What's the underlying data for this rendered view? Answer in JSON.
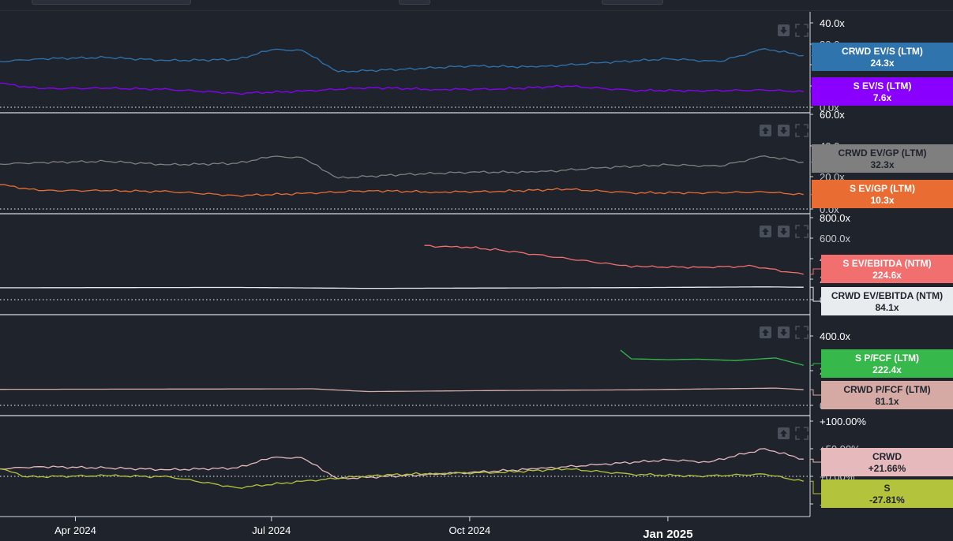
{
  "chart_data": [
    {
      "type": "line",
      "y_ticks": [
        "40.0x",
        "30.0x",
        "20.0x",
        "10.0x",
        "0.0x"
      ],
      "ylim": [
        0,
        42
      ],
      "series": [
        {
          "name": "CRWD EV/S (LTM)",
          "value_label": "24.3x",
          "color": "#2f74ad",
          "x": [
            "2024-02-26",
            "2024-03-15",
            "2024-04-15",
            "2024-05-15",
            "2024-06-15",
            "2024-07-01",
            "2024-07-15",
            "2024-08-01",
            "2024-09-01",
            "2024-10-01",
            "2024-11-01",
            "2024-12-01",
            "2025-01-01",
            "2025-01-25",
            "2025-02-15",
            "2025-03-05"
          ],
          "values": [
            21.5,
            22.8,
            23.4,
            22.0,
            22.5,
            27.0,
            26.8,
            16.8,
            18.0,
            19.5,
            19.0,
            21.0,
            22.8,
            21.5,
            27.5,
            24.3
          ]
        },
        {
          "name": "S EV/S (LTM)",
          "value_label": "7.6x",
          "color": "#8a00ff",
          "x": [
            "2024-02-26",
            "2024-03-15",
            "2024-04-15",
            "2024-05-15",
            "2024-06-15",
            "2024-07-15",
            "2024-08-15",
            "2024-09-15",
            "2024-10-15",
            "2024-11-15",
            "2024-12-15",
            "2025-01-15",
            "2025-02-15",
            "2025-03-05"
          ],
          "values": [
            11.5,
            9.0,
            9.2,
            8.6,
            6.8,
            7.8,
            9.5,
            8.6,
            8.8,
            10.2,
            8.2,
            8.0,
            8.3,
            7.6
          ]
        }
      ]
    },
    {
      "type": "line",
      "y_ticks": [
        "60.0x",
        "40.0x",
        "20.0x",
        "0.0x"
      ],
      "ylim": [
        0,
        62
      ],
      "series": [
        {
          "name": "CRWD EV/GP (LTM)",
          "value_label": "32.3x",
          "color": "#7f7f7f",
          "x": [
            "2024-02-26",
            "2024-03-15",
            "2024-04-15",
            "2024-05-15",
            "2024-06-15",
            "2024-07-01",
            "2024-07-15",
            "2024-08-01",
            "2024-09-01",
            "2024-10-01",
            "2024-11-01",
            "2024-12-01",
            "2025-01-01",
            "2025-01-25",
            "2025-02-15",
            "2025-03-05"
          ],
          "values": [
            31.0,
            32.0,
            32.8,
            30.5,
            31.5,
            36.0,
            35.5,
            21.5,
            24.0,
            25.5,
            25.5,
            28.5,
            30.5,
            29.5,
            36.5,
            32.3
          ]
        },
        {
          "name": "S EV/GP (LTM)",
          "value_label": "10.3x",
          "color": "#e96d33",
          "x": [
            "2024-02-26",
            "2024-03-15",
            "2024-04-15",
            "2024-05-15",
            "2024-06-15",
            "2024-07-15",
            "2024-08-15",
            "2024-09-15",
            "2024-10-15",
            "2024-11-15",
            "2024-12-15",
            "2025-01-15",
            "2025-02-15",
            "2025-03-05"
          ],
          "values": [
            17.0,
            13.0,
            13.0,
            12.3,
            9.6,
            11.0,
            13.0,
            12.0,
            12.5,
            14.0,
            11.5,
            11.5,
            12.0,
            10.3
          ]
        }
      ]
    },
    {
      "type": "line",
      "y_ticks": [
        "800.0x",
        "600.0x",
        "400.0x",
        "200.0x",
        "0.0x"
      ],
      "ylim": [
        -50,
        800
      ],
      "series": [
        {
          "name": "S EV/EBITDA (NTM)",
          "value_label": "224.6x",
          "color": "#f16f6f",
          "x": [
            "2024-09-10",
            "2024-09-15",
            "2024-09-25",
            "2024-10-15",
            "2024-12-10",
            "2024-12-20",
            "2025-01-15",
            "2025-02-10",
            "2025-02-25",
            "2025-03-05"
          ],
          "values": [
            535,
            515,
            525,
            485,
            320,
            305,
            300,
            310,
            250,
            224.6
          ]
        },
        {
          "name": "CRWD EV/EBITDA (NTM)",
          "value_label": "84.1x",
          "color": "#e8ecef",
          "x": [
            "2024-02-26",
            "2024-04-15",
            "2024-06-15",
            "2024-08-15",
            "2024-10-15",
            "2024-12-15",
            "2025-02-15",
            "2025-03-05"
          ],
          "values": [
            78,
            80,
            82,
            72,
            76,
            80,
            88,
            84.1
          ]
        }
      ]
    },
    {
      "type": "line",
      "y_ticks": [
        "400.0x",
        "200.0x",
        "0.0x"
      ],
      "ylim": [
        -10,
        420
      ],
      "series": [
        {
          "name": "S P/FCF (LTM)",
          "value_label": "222.4x",
          "color": "#36b84b",
          "x": [
            "2024-12-10",
            "2024-12-15",
            "2025-01-01",
            "2025-01-15",
            "2025-02-01",
            "2025-02-20",
            "2025-03-05"
          ],
          "values": [
            310,
            260,
            255,
            258,
            250,
            265,
            222.4
          ]
        },
        {
          "name": "CRWD P/FCF (LTM)",
          "value_label": "81.1x",
          "color": "#d6aaa4",
          "x": [
            "2024-02-26",
            "2024-04-15",
            "2024-06-15",
            "2024-07-20",
            "2024-08-15",
            "2024-10-15",
            "2024-12-15",
            "2025-02-20",
            "2025-03-05"
          ],
          "values": [
            83,
            84,
            85,
            86,
            70,
            76,
            80,
            90,
            81.1
          ]
        }
      ]
    },
    {
      "type": "line",
      "y_ticks": [
        "+100.00%",
        "+50.00%",
        "+0.00%",
        "-50.00%"
      ],
      "ylim": [
        -80,
        110
      ],
      "series": [
        {
          "name": "CRWD",
          "value_label": "+21.66%",
          "color": "#e6b9bd",
          "x": [
            "2024-02-26",
            "2024-03-15",
            "2024-04-15",
            "2024-05-15",
            "2024-06-15",
            "2024-07-01",
            "2024-07-15",
            "2024-08-01",
            "2024-09-01",
            "2024-10-01",
            "2024-11-01",
            "2024-12-01",
            "2025-01-01",
            "2025-01-20",
            "2025-02-15",
            "2025-03-05"
          ],
          "values": [
            0,
            5,
            2,
            -2,
            2,
            25,
            25,
            -22,
            -15,
            -8,
            0,
            10,
            20,
            15,
            45,
            21.66
          ]
        },
        {
          "name": "S",
          "value_label": "-27.81%",
          "color": "#b3c33c",
          "x": [
            "2024-02-26",
            "2024-03-10",
            "2024-04-15",
            "2024-05-15",
            "2024-06-15",
            "2024-07-15",
            "2024-08-15",
            "2024-09-15",
            "2024-10-15",
            "2024-11-15",
            "2024-12-15",
            "2025-01-15",
            "2025-02-15",
            "2025-03-05"
          ],
          "values": [
            0,
            -18,
            -15,
            -18,
            -42,
            -28,
            -15,
            -10,
            -8,
            0,
            -12,
            -16,
            -12,
            -27.81
          ]
        }
      ]
    }
  ],
  "x_axis": {
    "range": [
      "2024-02-26",
      "2025-03-08"
    ],
    "ticks": [
      {
        "date": "2024-04-01",
        "label": "Apr 2024"
      },
      {
        "date": "2024-07-01",
        "label": "Jul 2024"
      },
      {
        "date": "2024-10-01",
        "label": "Oct 2024"
      },
      {
        "date": "2025-01-01",
        "label": "Jan 2025"
      }
    ]
  }
}
